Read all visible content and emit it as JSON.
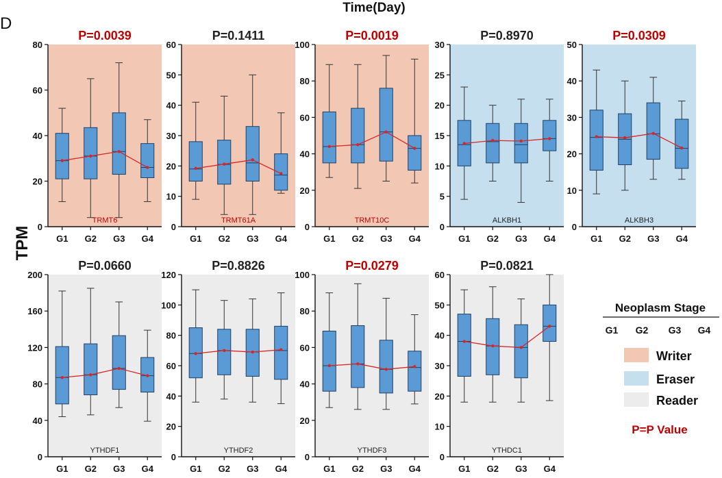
{
  "figure": {
    "panel_letter": "D",
    "top_label": "Time(Day)",
    "y_label": "TPM"
  },
  "legend": {
    "title": "Neoplasm Stage",
    "stages": [
      "G1",
      "G2",
      "G3",
      "G4"
    ],
    "items": [
      {
        "label": "Writer",
        "color": "#f2c8b4"
      },
      {
        "label": "Eraser",
        "color": "#c5dfee"
      },
      {
        "label": "Reader",
        "color": "#ececec"
      }
    ],
    "pvalue_note": "P=P Value",
    "pvalue_note_color": "#c00000"
  },
  "colors": {
    "box_fill": "#5b9bd5",
    "box_stroke": "#1f3f63",
    "mean_line": "#d62728",
    "sig_title": "#c00000",
    "nonsig_title": "#222222",
    "writer_gene_label": "#c00000",
    "other_gene_label": "#222222"
  },
  "chart_data": [
    {
      "type": "box",
      "gene": "TRMT6",
      "category": "Writer",
      "title": "P=0.0039",
      "significant": true,
      "ylim": [
        0,
        80
      ],
      "yticks": [
        0,
        20,
        40,
        60,
        80
      ],
      "categories": [
        "G1",
        "G2",
        "G3",
        "G4"
      ],
      "boxes": [
        {
          "q1": 21,
          "median": 29,
          "q3": 41,
          "whisker_low": 11,
          "whisker_high": 52
        },
        {
          "q1": 21,
          "median": 31,
          "q3": 43.5,
          "whisker_low": 4,
          "whisker_high": 65
        },
        {
          "q1": 23,
          "median": 33,
          "q3": 50,
          "whisker_low": 4,
          "whisker_high": 72
        },
        {
          "q1": 21.5,
          "median": 26,
          "q3": 36.5,
          "whisker_low": 11,
          "whisker_high": 47
        }
      ],
      "means": [
        29,
        31,
        33,
        26
      ]
    },
    {
      "type": "box",
      "gene": "TRMT61A",
      "category": "Writer",
      "title": "P=0.1411",
      "significant": false,
      "ylim": [
        0,
        60
      ],
      "yticks": [
        0,
        10,
        20,
        30,
        40,
        50,
        60
      ],
      "categories": [
        "G1",
        "G2",
        "G3",
        "G4"
      ],
      "boxes": [
        {
          "q1": 15,
          "median": 19,
          "q3": 28,
          "whisker_low": 9,
          "whisker_high": 41
        },
        {
          "q1": 14,
          "median": 20.5,
          "q3": 28.5,
          "whisker_low": 4,
          "whisker_high": 43
        },
        {
          "q1": 15,
          "median": 21,
          "q3": 33,
          "whisker_low": 4,
          "whisker_high": 50
        },
        {
          "q1": 12,
          "median": 17,
          "q3": 24,
          "whisker_low": 11,
          "whisker_high": 37.5
        }
      ],
      "means": [
        19.2,
        20.6,
        22,
        17.5
      ]
    },
    {
      "type": "box",
      "gene": "TRMT10C",
      "category": "Writer",
      "title": "P=0.0019",
      "significant": true,
      "ylim": [
        0,
        100
      ],
      "yticks": [
        0,
        20,
        40,
        60,
        80,
        100
      ],
      "categories": [
        "G1",
        "G2",
        "G3",
        "G4"
      ],
      "boxes": [
        {
          "q1": 35,
          "median": 44,
          "q3": 63,
          "whisker_low": 27,
          "whisker_high": 89
        },
        {
          "q1": 35,
          "median": 45,
          "q3": 65,
          "whisker_low": 21,
          "whisker_high": 89
        },
        {
          "q1": 36,
          "median": 52,
          "q3": 76,
          "whisker_low": 25,
          "whisker_high": 94
        },
        {
          "q1": 31,
          "median": 43,
          "q3": 50,
          "whisker_low": 24,
          "whisker_high": 92
        }
      ],
      "means": [
        44,
        45,
        52,
        43
      ]
    },
    {
      "type": "box",
      "gene": "ALKBH1",
      "category": "Eraser",
      "title": "P=0.8970",
      "significant": false,
      "ylim": [
        0,
        30
      ],
      "yticks": [
        0,
        5,
        10,
        15,
        20,
        25,
        30
      ],
      "categories": [
        "G1",
        "G2",
        "G3",
        "G4"
      ],
      "boxes": [
        {
          "q1": 10,
          "median": 13.5,
          "q3": 17.5,
          "whisker_low": 4.5,
          "whisker_high": 23
        },
        {
          "q1": 10.5,
          "median": 14,
          "q3": 17,
          "whisker_low": 7.5,
          "whisker_high": 20
        },
        {
          "q1": 10.5,
          "median": 13.5,
          "q3": 17,
          "whisker_low": 4,
          "whisker_high": 21
        },
        {
          "q1": 12.5,
          "median": 14.5,
          "q3": 17.5,
          "whisker_low": 7.5,
          "whisker_high": 21
        }
      ],
      "means": [
        13.7,
        14.2,
        14.1,
        14.5
      ]
    },
    {
      "type": "box",
      "gene": "ALKBH3",
      "category": "Eraser",
      "title": "P=0.0309",
      "significant": true,
      "ylim": [
        0,
        50
      ],
      "yticks": [
        0,
        10,
        20,
        30,
        40,
        50
      ],
      "categories": [
        "G1",
        "G2",
        "G3",
        "G4"
      ],
      "boxes": [
        {
          "q1": 15.5,
          "median": 24.5,
          "q3": 32,
          "whisker_low": 9,
          "whisker_high": 43
        },
        {
          "q1": 17,
          "median": 24,
          "q3": 31,
          "whisker_low": 10,
          "whisker_high": 40
        },
        {
          "q1": 18.5,
          "median": 25.5,
          "q3": 34,
          "whisker_low": 13,
          "whisker_high": 41
        },
        {
          "q1": 16,
          "median": 21.5,
          "q3": 29.5,
          "whisker_low": 13,
          "whisker_high": 34.5
        }
      ],
      "means": [
        24.7,
        24.4,
        25.6,
        21.6
      ]
    },
    {
      "type": "box",
      "gene": "YTHDF1",
      "category": "Reader",
      "title": "P=0.0660",
      "significant": false,
      "ylim": [
        0,
        200
      ],
      "yticks": [
        0,
        40,
        80,
        120,
        160,
        200
      ],
      "categories": [
        "G1",
        "G2",
        "G3",
        "G4"
      ],
      "boxes": [
        {
          "q1": 58,
          "median": 87,
          "q3": 121,
          "whisker_low": 44,
          "whisker_high": 182
        },
        {
          "q1": 68,
          "median": 90,
          "q3": 124,
          "whisker_low": 46,
          "whisker_high": 185
        },
        {
          "q1": 74,
          "median": 97,
          "q3": 133,
          "whisker_low": 54,
          "whisker_high": 170
        },
        {
          "q1": 71,
          "median": 89,
          "q3": 109,
          "whisker_low": 39,
          "whisker_high": 139
        }
      ],
      "means": [
        87,
        90,
        97,
        89
      ]
    },
    {
      "type": "box",
      "gene": "YTHDF2",
      "category": "Reader",
      "title": "P=0.8826",
      "significant": false,
      "ylim": [
        0,
        120
      ],
      "yticks": [
        0,
        20,
        40,
        60,
        80,
        100,
        120
      ],
      "categories": [
        "G1",
        "G2",
        "G3",
        "G4"
      ],
      "boxes": [
        {
          "q1": 52,
          "median": 68,
          "q3": 85,
          "whisker_low": 36,
          "whisker_high": 110
        },
        {
          "q1": 54,
          "median": 70,
          "q3": 84,
          "whisker_low": 38,
          "whisker_high": 103
        },
        {
          "q1": 53,
          "median": 69,
          "q3": 84,
          "whisker_low": 36,
          "whisker_high": 104
        },
        {
          "q1": 51,
          "median": 70,
          "q3": 86,
          "whisker_low": 35,
          "whisker_high": 108
        }
      ],
      "means": [
        68,
        70,
        69,
        70.5
      ]
    },
    {
      "type": "box",
      "gene": "YTHDF3",
      "category": "Reader",
      "title": "P=0.0279",
      "significant": true,
      "ylim": [
        0,
        100
      ],
      "yticks": [
        0,
        20,
        40,
        60,
        80,
        100
      ],
      "categories": [
        "G1",
        "G2",
        "G3",
        "G4"
      ],
      "boxes": [
        {
          "q1": 36,
          "median": 50,
          "q3": 69,
          "whisker_low": 27,
          "whisker_high": 90
        },
        {
          "q1": 38,
          "median": 51,
          "q3": 72,
          "whisker_low": 26,
          "whisker_high": 95
        },
        {
          "q1": 35,
          "median": 48,
          "q3": 64,
          "whisker_low": 26,
          "whisker_high": 87
        },
        {
          "q1": 36,
          "median": 49,
          "q3": 58,
          "whisker_low": 29,
          "whisker_high": 78
        }
      ],
      "means": [
        50,
        51,
        48,
        49.5
      ]
    },
    {
      "type": "box",
      "gene": "YTHDC1",
      "category": "Reader",
      "title": "P=0.0821",
      "significant": false,
      "ylim": [
        0,
        60
      ],
      "yticks": [
        0,
        10,
        20,
        30,
        40,
        50,
        60
      ],
      "categories": [
        "G1",
        "G2",
        "G3",
        "G4"
      ],
      "boxes": [
        {
          "q1": 26.5,
          "median": 38,
          "q3": 47,
          "whisker_low": 18,
          "whisker_high": 55
        },
        {
          "q1": 27,
          "median": 36.5,
          "q3": 45.5,
          "whisker_low": 18,
          "whisker_high": 56
        },
        {
          "q1": 26,
          "median": 36,
          "q3": 43.5,
          "whisker_low": 18,
          "whisker_high": 52
        },
        {
          "q1": 38,
          "median": 43,
          "q3": 50,
          "whisker_low": 18.5,
          "whisker_high": 60
        }
      ],
      "means": [
        38,
        36.5,
        36,
        43
      ]
    }
  ]
}
